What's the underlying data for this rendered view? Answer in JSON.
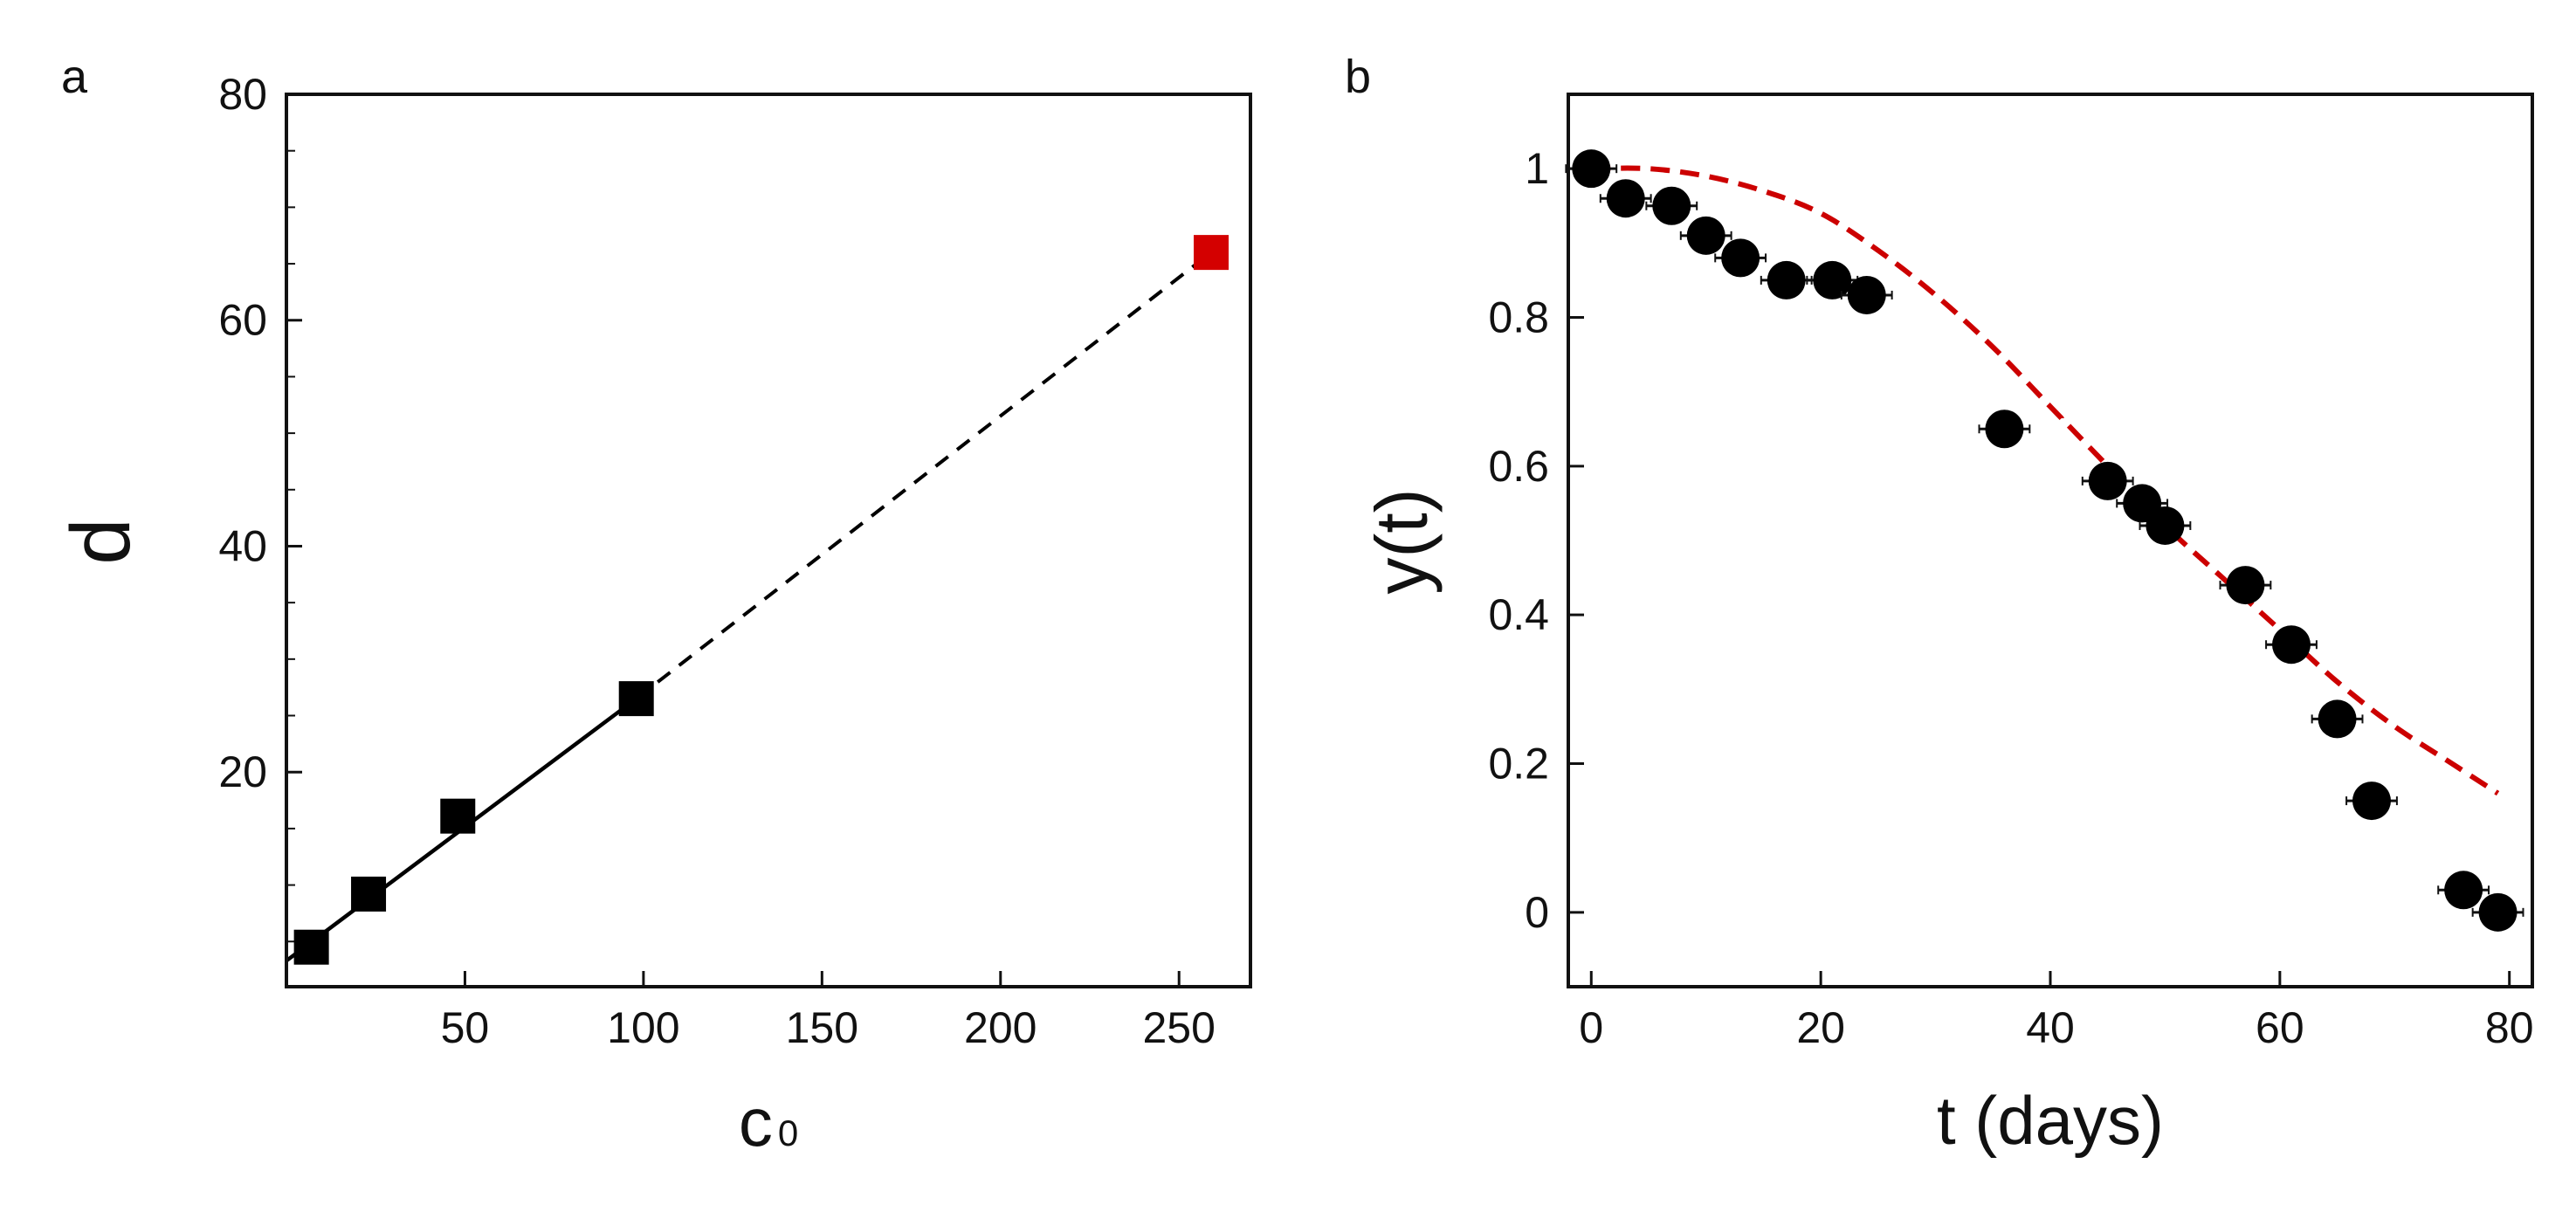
{
  "chart_data": [
    {
      "panel": "a",
      "type": "scatter",
      "xlabel": "c",
      "xlabel_sub": "0",
      "ylabel": "d",
      "xlim": [
        0,
        270
      ],
      "ylim": [
        1,
        80
      ],
      "xticks": [
        50,
        100,
        150,
        200,
        250
      ],
      "xtick_labels": [
        "50",
        "100",
        "150",
        "200",
        "250"
      ],
      "yticks": [
        20,
        40,
        60,
        80
      ],
      "ytick_labels": [
        "20",
        "40",
        "60",
        "80"
      ],
      "yminor_ticks": [
        5,
        10,
        15,
        25,
        30,
        35,
        45,
        50,
        55,
        65,
        70,
        75
      ],
      "grid": false,
      "points": [
        {
          "x": 7,
          "y": 4.5
        },
        {
          "x": 23,
          "y": 9.2
        },
        {
          "x": 48,
          "y": 16.1
        },
        {
          "x": 98,
          "y": 26.5
        }
      ],
      "highlight_points": [
        {
          "x": 259,
          "y": 66
        }
      ],
      "fit_solid": {
        "x": [
          0,
          98
        ],
        "y": [
          3.3,
          26.5
        ]
      },
      "fit_dashed": {
        "x": [
          98,
          259
        ],
        "y": [
          26.5,
          66
        ]
      },
      "colors": {
        "points": "#000000",
        "highlight": "#d40000",
        "fit": "#000000"
      }
    },
    {
      "panel": "b",
      "type": "scatter",
      "xlabel": "t (days)",
      "ylabel": "y(t)",
      "xlim": [
        -2,
        82
      ],
      "ylim": [
        -0.1,
        1.1
      ],
      "xticks": [
        0,
        20,
        40,
        60,
        80
      ],
      "xtick_labels": [
        "0",
        "20",
        "40",
        "60",
        "80"
      ],
      "yticks": [
        0,
        0.2,
        0.4,
        0.6,
        0.8,
        1
      ],
      "ytick_labels": [
        "0",
        "0.2",
        "0.4",
        "0.6",
        "0.8",
        "1"
      ],
      "grid": false,
      "points": [
        {
          "x": 0,
          "y": 1.0
        },
        {
          "x": 3,
          "y": 0.96
        },
        {
          "x": 7,
          "y": 0.95
        },
        {
          "x": 10,
          "y": 0.91
        },
        {
          "x": 13,
          "y": 0.88
        },
        {
          "x": 17,
          "y": 0.85
        },
        {
          "x": 21,
          "y": 0.85
        },
        {
          "x": 24,
          "y": 0.83
        },
        {
          "x": 36,
          "y": 0.65
        },
        {
          "x": 45,
          "y": 0.58
        },
        {
          "x": 48,
          "y": 0.55
        },
        {
          "x": 50,
          "y": 0.52
        },
        {
          "x": 57,
          "y": 0.44
        },
        {
          "x": 61,
          "y": 0.36
        },
        {
          "x": 65,
          "y": 0.26
        },
        {
          "x": 68,
          "y": 0.15
        },
        {
          "x": 76,
          "y": 0.03
        },
        {
          "x": 79,
          "y": 0.0
        }
      ],
      "x_error": 2.2,
      "model_curve": {
        "x": [
          0,
          5,
          10,
          15,
          20,
          25,
          30,
          35,
          40,
          45,
          50,
          55,
          60,
          65,
          70,
          75,
          79
        ],
        "y": [
          1.0,
          1.0,
          0.99,
          0.97,
          0.94,
          0.89,
          0.83,
          0.76,
          0.68,
          0.6,
          0.52,
          0.45,
          0.38,
          0.31,
          0.25,
          0.2,
          0.16
        ]
      },
      "colors": {
        "points": "#000000",
        "curve": "#cc0000"
      }
    }
  ]
}
